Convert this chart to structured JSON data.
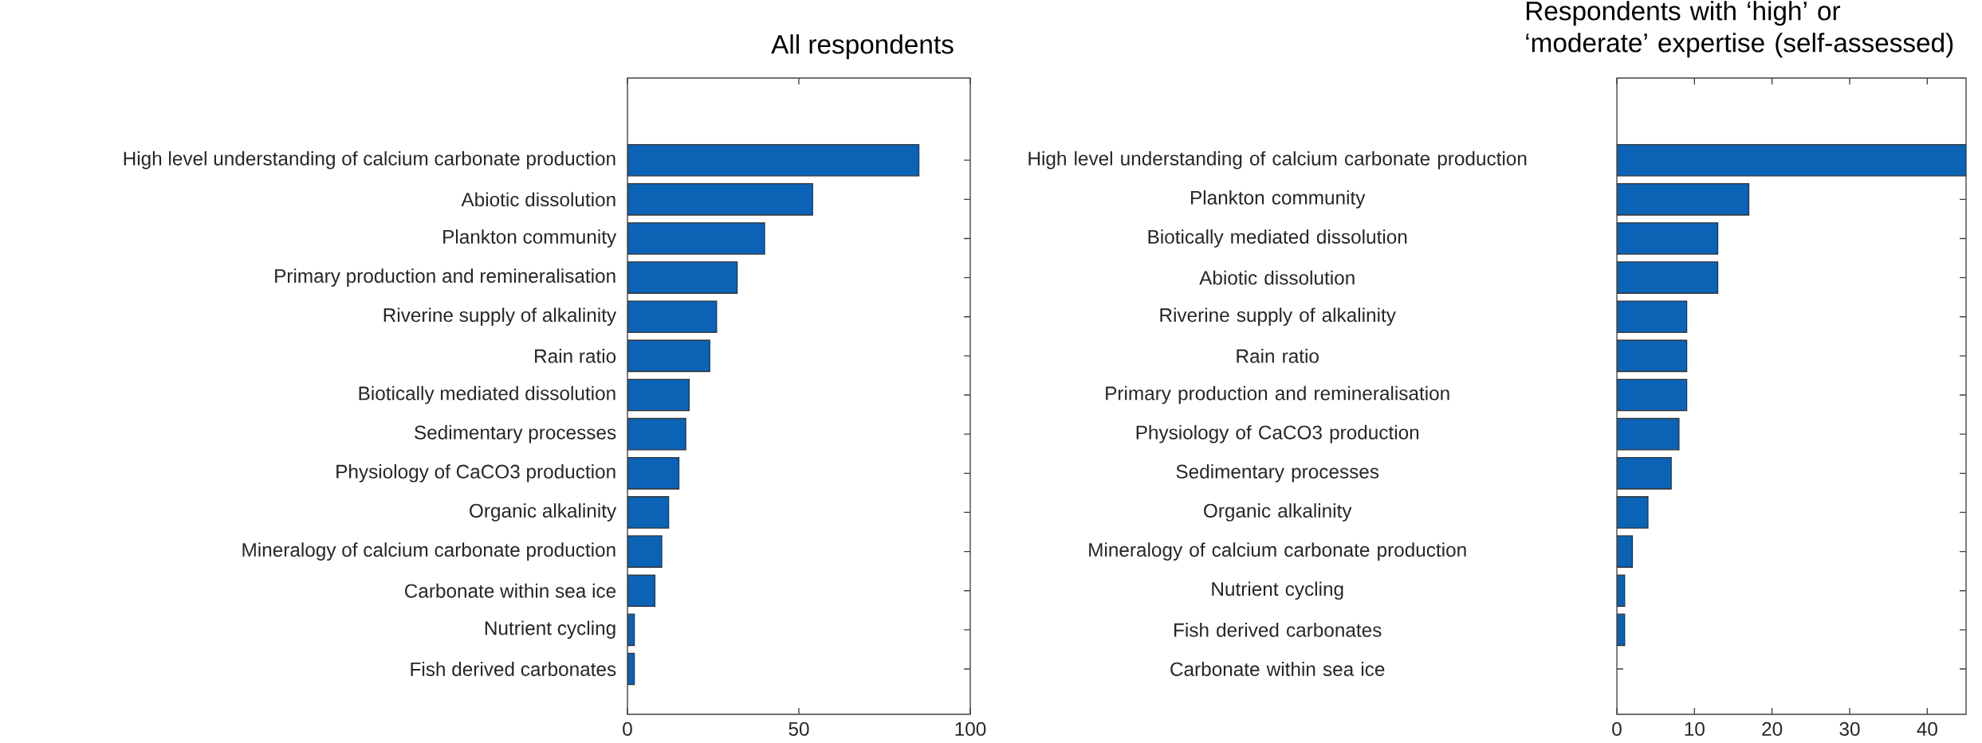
{
  "chart_data": [
    {
      "type": "bar",
      "orientation": "horizontal",
      "title": "All respondents",
      "categories": [
        "High level understanding of calcium carbonate production",
        "Abiotic dissolution",
        "Plankton community",
        "Primary production and remineralisation",
        "Riverine supply of alkalinity",
        "Rain ratio",
        "Biotically mediated dissolution",
        "Sedimentary processes",
        "Physiology of CaCO3 production",
        "Organic alkalinity",
        "Mineralogy of calcium carbonate production",
        "Carbonate within sea ice",
        "Nutrient cycling",
        "Fish derived carbonates"
      ],
      "values": [
        85,
        54,
        40,
        32,
        26,
        24,
        18,
        17,
        15,
        12,
        10,
        8,
        2,
        2
      ],
      "color": "#0b63b6",
      "xlim": [
        0,
        100
      ],
      "xticks": [
        0,
        50,
        100
      ]
    },
    {
      "type": "bar",
      "orientation": "horizontal",
      "title": "Respondents with ‘high’ or ‘moderate’ expertise (self-assessed)",
      "categories": [
        "High level understanding of calcium carbonate production",
        "Plankton community",
        "Biotically mediated dissolution",
        "Abiotic dissolution",
        "Riverine supply of alkalinity",
        "Rain ratio",
        "Primary production and remineralisation",
        "Physiology of CaCO3 production",
        "Sedimentary processes",
        "Organic alkalinity",
        "Mineralogy of calcium carbonate production",
        "Nutrient cycling",
        "Fish derived carbonates",
        "Carbonate within sea ice"
      ],
      "values": [
        45,
        17,
        13,
        13,
        9,
        9,
        9,
        8,
        7,
        4,
        2,
        1,
        1,
        null
      ],
      "color": "#0b63b6",
      "xlim": [
        0,
        45
      ],
      "xticks": [
        0,
        10,
        20,
        30,
        40
      ]
    }
  ]
}
